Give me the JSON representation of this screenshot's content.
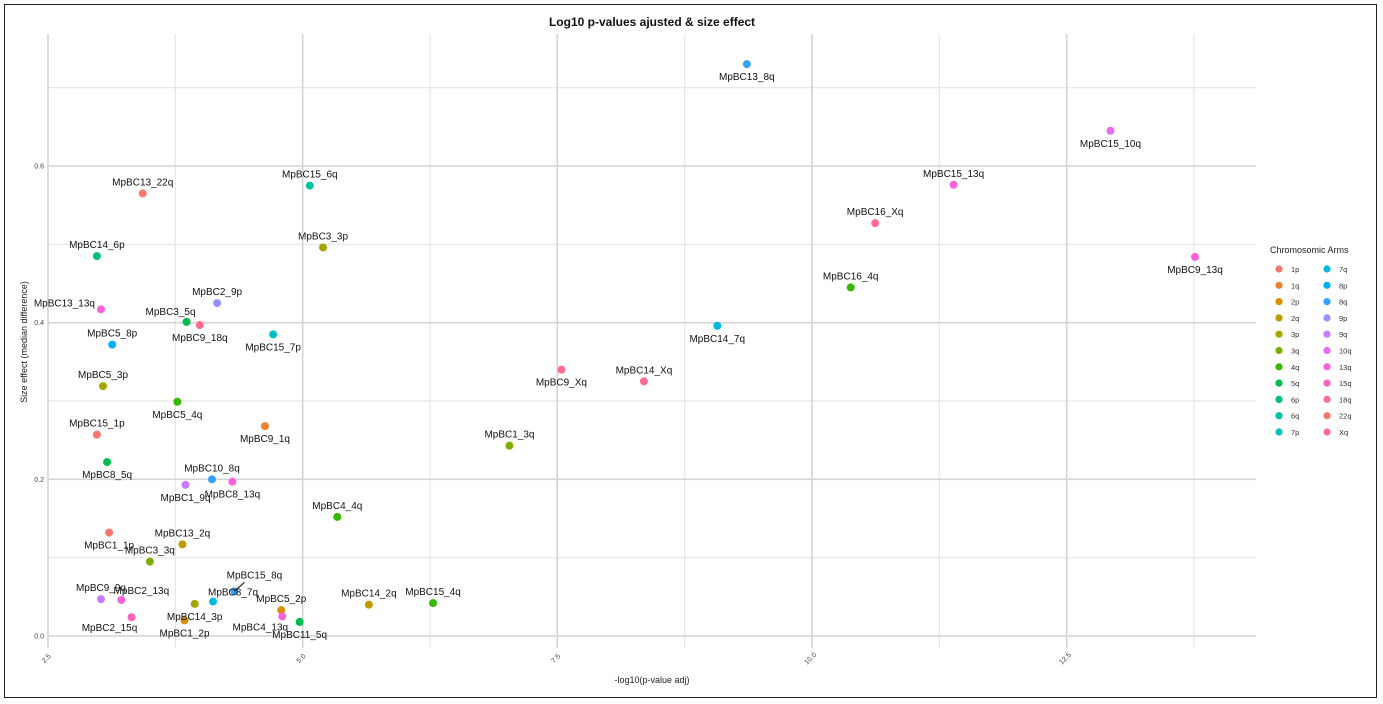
{
  "chart_data": {
    "type": "scatter",
    "title": "Log10 p-values ajusted & size effect",
    "xlabel": "-log10(p-value adj)",
    "ylabel": "Size effect (median difference)",
    "xlim": [
      2.5,
      14.8
    ],
    "ylim": [
      0,
      0.75
    ],
    "xticks": [
      2.5,
      5.0,
      7.5,
      10.0,
      12.5
    ],
    "xtick_labels": [
      "2.5",
      "5.0",
      "7.5",
      "10.0",
      "12.5"
    ],
    "yticks": [
      0.0,
      0.2,
      0.4,
      0.6
    ],
    "ytick_labels": [
      "0.0",
      "0.2",
      "0.4",
      "0.6"
    ],
    "grid": true,
    "legend": {
      "title": "Chromosomic Arms",
      "placement": "right",
      "entries": [
        {
          "name": "1p",
          "color": "#F8766D"
        },
        {
          "name": "1q",
          "color": "#EA8331"
        },
        {
          "name": "2p",
          "color": "#D89000"
        },
        {
          "name": "2q",
          "color": "#C09B00"
        },
        {
          "name": "3p",
          "color": "#A3A500"
        },
        {
          "name": "3q",
          "color": "#7CAE00"
        },
        {
          "name": "4q",
          "color": "#39B600"
        },
        {
          "name": "5q",
          "color": "#00BB4E"
        },
        {
          "name": "6p",
          "color": "#00BF7D"
        },
        {
          "name": "6q",
          "color": "#00C1A3"
        },
        {
          "name": "7p",
          "color": "#00BFC4"
        },
        {
          "name": "7q",
          "color": "#00BAE0"
        },
        {
          "name": "8p",
          "color": "#00B0F6"
        },
        {
          "name": "8q",
          "color": "#35A2FF"
        },
        {
          "name": "9p",
          "color": "#9590FF"
        },
        {
          "name": "9q",
          "color": "#C77CFF"
        },
        {
          "name": "10q",
          "color": "#E76BF3"
        },
        {
          "name": "13q",
          "color": "#FA62DB"
        },
        {
          "name": "15q",
          "color": "#FF62BC"
        },
        {
          "name": "18q",
          "color": "#FF6C91"
        },
        {
          "name": "22q",
          "color": "#F8766D"
        },
        {
          "name": "Xq",
          "color": "#FF6C91"
        }
      ]
    },
    "points": [
      {
        "label": "MpBC13_8q",
        "arm": "8q",
        "x": 9.36,
        "y": 0.73,
        "lpos": "below"
      },
      {
        "label": "MpBC15_10q",
        "arm": "10q",
        "x": 12.93,
        "y": 0.645,
        "lpos": "below"
      },
      {
        "label": "MpBC15_6q",
        "arm": "6q",
        "x": 5.07,
        "y": 0.575,
        "lpos": "above"
      },
      {
        "label": "MpBC15_13q",
        "arm": "13q",
        "x": 11.39,
        "y": 0.576,
        "lpos": "above"
      },
      {
        "label": "MpBC13_22q",
        "arm": "22q",
        "x": 3.43,
        "y": 0.565,
        "lpos": "above"
      },
      {
        "label": "MpBC16_Xq",
        "arm": "Xq",
        "x": 10.62,
        "y": 0.527,
        "lpos": "above"
      },
      {
        "label": "MpBC3_3p",
        "arm": "3p",
        "x": 5.2,
        "y": 0.496,
        "lpos": "above"
      },
      {
        "label": "MpBC14_6p",
        "arm": "6p",
        "x": 2.98,
        "y": 0.485,
        "lpos": "above"
      },
      {
        "label": "MpBC9_13q",
        "arm": "13q",
        "x": 13.76,
        "y": 0.484,
        "lpos": "below"
      },
      {
        "label": "MpBC16_4q",
        "arm": "4q",
        "x": 10.38,
        "y": 0.445,
        "lpos": "above"
      },
      {
        "label": "MpBC2_9p",
        "arm": "9p",
        "x": 4.16,
        "y": 0.425,
        "lpos": "above"
      },
      {
        "label": "MpBC13_13q",
        "arm": "13q",
        "x": 3.02,
        "y": 0.417,
        "lpos": "left"
      },
      {
        "label": "MpBC3_5q",
        "arm": "5q",
        "x": 3.86,
        "y": 0.401,
        "lpos": "aboveleft"
      },
      {
        "label": "MpBC9_18q",
        "arm": "18q",
        "x": 3.99,
        "y": 0.397,
        "lpos": "below"
      },
      {
        "label": "MpBC14_7q",
        "arm": "7q",
        "x": 9.07,
        "y": 0.396,
        "lpos": "below"
      },
      {
        "label": "MpBC15_7p",
        "arm": "7p",
        "x": 4.71,
        "y": 0.385,
        "lpos": "below"
      },
      {
        "label": "MpBC5_8p",
        "arm": "8p",
        "x": 3.13,
        "y": 0.372,
        "lpos": "above"
      },
      {
        "label": "MpBC9_Xq",
        "arm": "Xq",
        "x": 7.54,
        "y": 0.34,
        "lpos": "below"
      },
      {
        "label": "MpBC14_Xq",
        "arm": "Xq",
        "x": 8.35,
        "y": 0.325,
        "lpos": "above"
      },
      {
        "label": "MpBC5_3p",
        "arm": "3p",
        "x": 3.04,
        "y": 0.319,
        "lpos": "above"
      },
      {
        "label": "MpBC5_4q",
        "arm": "4q",
        "x": 3.77,
        "y": 0.299,
        "lpos": "below"
      },
      {
        "label": "MpBC9_1q",
        "arm": "1q",
        "x": 4.63,
        "y": 0.268,
        "lpos": "below"
      },
      {
        "label": "MpBC15_1p",
        "arm": "1p",
        "x": 2.98,
        "y": 0.257,
        "lpos": "above"
      },
      {
        "label": "MpBC1_3q",
        "arm": "3q",
        "x": 7.03,
        "y": 0.243,
        "lpos": "above"
      },
      {
        "label": "MpBC8_5q",
        "arm": "5q",
        "x": 3.08,
        "y": 0.222,
        "lpos": "below"
      },
      {
        "label": "MpBC10_8q",
        "arm": "8q",
        "x": 4.11,
        "y": 0.2,
        "lpos": "above"
      },
      {
        "label": "MpBC8_13q",
        "arm": "13q",
        "x": 4.31,
        "y": 0.197,
        "lpos": "below"
      },
      {
        "label": "MpBC1_9q",
        "arm": "9q",
        "x": 3.85,
        "y": 0.193,
        "lpos": "below"
      },
      {
        "label": "MpBC4_4q",
        "arm": "4q",
        "x": 5.34,
        "y": 0.152,
        "lpos": "above"
      },
      {
        "label": "MpBC1_1p",
        "arm": "1p",
        "x": 3.1,
        "y": 0.132,
        "lpos": "below"
      },
      {
        "label": "MpBC13_2q",
        "arm": "2q",
        "x": 3.82,
        "y": 0.117,
        "lpos": "above"
      },
      {
        "label": "MpBC3_3q",
        "arm": "3q",
        "x": 3.5,
        "y": 0.095,
        "lpos": "above"
      },
      {
        "label": "MpBC15_8q",
        "arm": "8q",
        "x": 4.33,
        "y": 0.057,
        "lpos": "leader"
      },
      {
        "label": "MpBC9_9q",
        "arm": "9q",
        "x": 3.02,
        "y": 0.047,
        "lpos": "above"
      },
      {
        "label": "MpBC2_13q",
        "arm": "13q",
        "x": 3.22,
        "y": 0.046,
        "lpos": "aboveright"
      },
      {
        "label": "MpBC8_7q",
        "arm": "7q",
        "x": 4.12,
        "y": 0.044,
        "lpos": "aboveright"
      },
      {
        "label": "MpBC14_3p",
        "arm": "3p",
        "x": 3.94,
        "y": 0.041,
        "lpos": "below"
      },
      {
        "label": "MpBC14_2q",
        "arm": "2q",
        "x": 5.65,
        "y": 0.04,
        "lpos": "above"
      },
      {
        "label": "MpBC15_4q",
        "arm": "4q",
        "x": 6.28,
        "y": 0.042,
        "lpos": "above"
      },
      {
        "label": "MpBC5_2p",
        "arm": "2p",
        "x": 4.79,
        "y": 0.033,
        "lpos": "above"
      },
      {
        "label": "MpBC4_13q",
        "arm": "13q",
        "x": 4.8,
        "y": 0.025,
        "lpos": "belowleft"
      },
      {
        "label": "MpBC2_15q",
        "arm": "15q",
        "x": 3.32,
        "y": 0.024,
        "lpos": "belowleft"
      },
      {
        "label": "MpBC1_2p",
        "arm": "2p",
        "x": 3.84,
        "y": 0.02,
        "lpos": "below"
      },
      {
        "label": "MpBC11_5q",
        "arm": "5q",
        "x": 4.97,
        "y": 0.018,
        "lpos": "below"
      }
    ]
  }
}
